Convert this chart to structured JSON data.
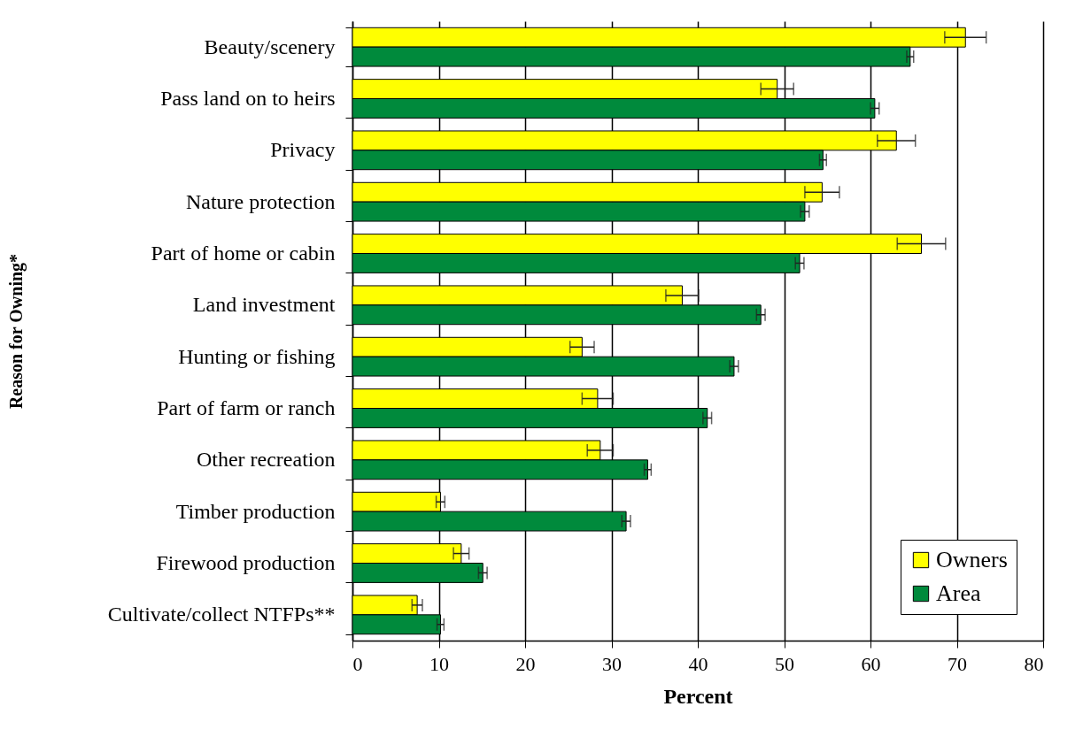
{
  "chart_data": {
    "type": "bar",
    "orientation": "horizontal",
    "xlabel": "Percent",
    "ylabel": "Reason for Owning*",
    "categories": [
      "Beauty/scenery",
      "Pass land on to heirs",
      "Privacy",
      "Nature protection",
      "Part of home or cabin",
      "Land investment",
      "Hunting or fishing",
      "Part of farm or ranch",
      "Other recreation",
      "Timber production",
      "Firewood production",
      "Cultivate/collect NTFPs**"
    ],
    "series": [
      {
        "name": "Owners",
        "color": "#ffff00",
        "values": [
          71.0,
          49.2,
          63.0,
          54.4,
          65.9,
          38.2,
          26.6,
          28.4,
          28.7,
          10.2,
          12.6,
          7.5
        ],
        "errors": [
          2.4,
          1.9,
          2.2,
          2.0,
          2.8,
          1.9,
          1.4,
          1.8,
          1.5,
          0.5,
          0.9,
          0.6
        ]
      },
      {
        "name": "Area",
        "color": "#008a3c",
        "values": [
          64.6,
          60.5,
          54.5,
          52.4,
          51.8,
          47.3,
          44.2,
          41.1,
          34.2,
          31.7,
          15.1,
          10.2
        ],
        "errors": [
          0.4,
          0.5,
          0.4,
          0.5,
          0.5,
          0.5,
          0.5,
          0.5,
          0.4,
          0.5,
          0.5,
          0.4
        ]
      }
    ],
    "xlim": [
      0,
      80
    ],
    "xticks": [
      0,
      10,
      20,
      30,
      40,
      50,
      60,
      70,
      80
    ],
    "grid": "x",
    "legend": "bottom right"
  }
}
